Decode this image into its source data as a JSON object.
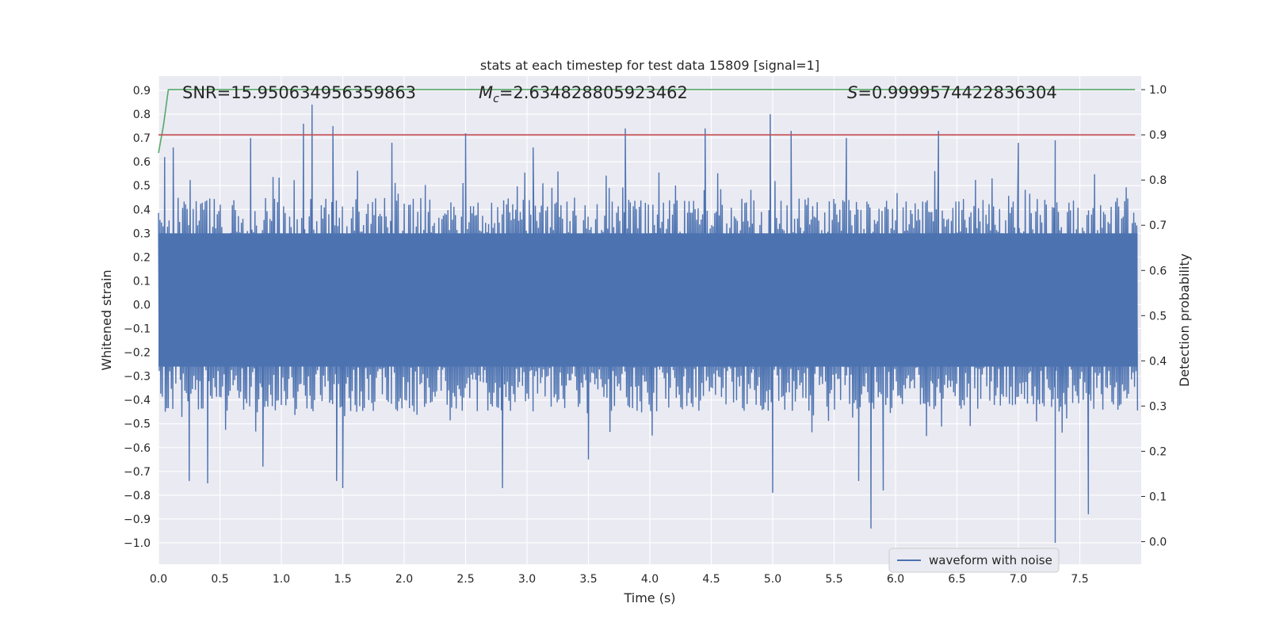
{
  "chart_data": {
    "type": "line",
    "title": "stats at each timestep for test data 15809 [signal=1]",
    "xlabel": "Time (s)",
    "ylabel": "Whitened strain",
    "ylabel_right": "Detection probability",
    "xlim": [
      0.0,
      8.0
    ],
    "ylim": [
      -1.09,
      0.96
    ],
    "ylim_right": [
      -0.05,
      1.03
    ],
    "x_ticks": [
      0.0,
      0.5,
      1.0,
      1.5,
      2.0,
      2.5,
      3.0,
      3.5,
      4.0,
      4.5,
      5.0,
      5.5,
      6.0,
      6.5,
      7.0,
      7.5
    ],
    "x_tick_labels": [
      "0.0",
      "0.5",
      "1.0",
      "1.5",
      "2.0",
      "2.5",
      "3.0",
      "3.5",
      "4.0",
      "4.5",
      "5.0",
      "5.5",
      "6.0",
      "6.5",
      "7.0",
      "7.5"
    ],
    "y_ticks": [
      0.9,
      0.8,
      0.7,
      0.6,
      0.5,
      0.4,
      0.3,
      0.2,
      0.1,
      0.0,
      -0.1,
      -0.2,
      -0.3,
      -0.4,
      -0.5,
      -0.6,
      -0.7,
      -0.8,
      -0.9,
      -1.0
    ],
    "y_tick_labels": [
      "0.9",
      "0.8",
      "0.7",
      "0.6",
      "0.5",
      "0.4",
      "0.3",
      "0.2",
      "0.1",
      "0.0",
      "−0.1",
      "−0.2",
      "−0.3",
      "−0.4",
      "−0.5",
      "−0.6",
      "−0.7",
      "−0.8",
      "−0.9",
      "−1.0"
    ],
    "y_right_ticks": [
      1.0,
      0.9,
      0.8,
      0.7,
      0.6,
      0.5,
      0.4,
      0.3,
      0.2,
      0.1,
      0.0
    ],
    "y_right_tick_labels": [
      "1.0",
      "0.9",
      "0.8",
      "0.7",
      "0.6",
      "0.5",
      "0.4",
      "0.3",
      "0.2",
      "0.1",
      "0.0"
    ],
    "grid": true,
    "annotations": {
      "snr": "SNR=15.950634956359863",
      "mc_symbol": "M",
      "mc_subscript": "c",
      "mc_value": "=2.634828805923462",
      "s_symbol": "S",
      "s_value": "=0.9999574422836304"
    },
    "series": [
      {
        "name": "waveform with noise",
        "axis": "left",
        "color": "#4c72b0",
        "style": "dense noise, envelope approx ±0.45 with spikes",
        "peaks_upper": [
          [
            0.05,
            0.62
          ],
          [
            0.12,
            0.66
          ],
          [
            0.75,
            0.7
          ],
          [
            1.18,
            0.76
          ],
          [
            1.25,
            0.84
          ],
          [
            1.42,
            0.75
          ],
          [
            1.9,
            0.68
          ],
          [
            2.5,
            0.72
          ],
          [
            3.05,
            0.66
          ],
          [
            3.8,
            0.74
          ],
          [
            4.45,
            0.74
          ],
          [
            4.98,
            0.8
          ],
          [
            5.15,
            0.73
          ],
          [
            5.6,
            0.7
          ],
          [
            6.35,
            0.73
          ],
          [
            7.0,
            0.68
          ],
          [
            7.3,
            0.69
          ]
        ],
        "peaks_lower": [
          [
            0.25,
            -0.74
          ],
          [
            0.4,
            -0.75
          ],
          [
            0.85,
            -0.68
          ],
          [
            1.45,
            -0.74
          ],
          [
            1.5,
            -0.77
          ],
          [
            2.8,
            -0.77
          ],
          [
            3.5,
            -0.65
          ],
          [
            5.0,
            -0.79
          ],
          [
            5.7,
            -0.74
          ],
          [
            5.8,
            -0.94
          ],
          [
            5.9,
            -0.78
          ],
          [
            7.3,
            -1.0
          ],
          [
            7.57,
            -0.88
          ]
        ],
        "envelope": 0.45
      },
      {
        "name": "",
        "axis": "right",
        "color": "#55a868",
        "x": [
          0.0,
          0.04,
          0.08,
          0.15,
          7.95
        ],
        "y": [
          0.86,
          0.92,
          0.9999,
          1.0,
          1.0
        ]
      },
      {
        "name": "",
        "axis": "right",
        "color": "#c44e52",
        "x": [
          0.0,
          7.95
        ],
        "y": [
          0.9,
          0.9
        ]
      }
    ],
    "legend": {
      "placement": "lower-right",
      "label": "waveform with noise"
    }
  }
}
